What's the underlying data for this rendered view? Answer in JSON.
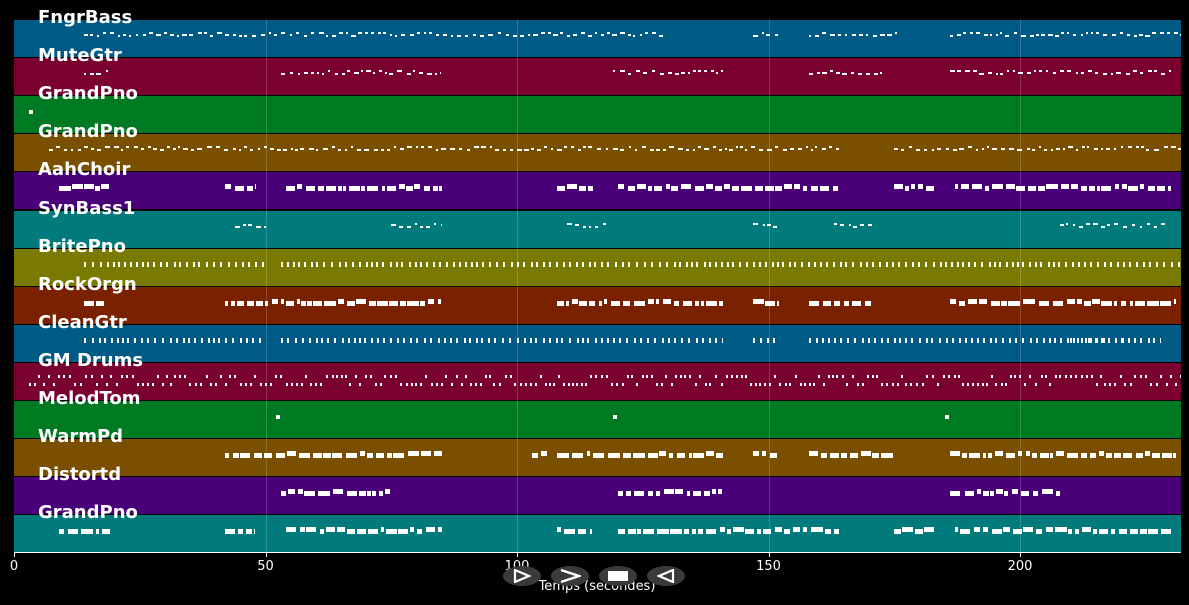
{
  "player": {
    "x_axis_label": "Temps (secondes)",
    "x_ticks": [
      0,
      50,
      100,
      150,
      200
    ],
    "x_range": [
      0,
      232
    ],
    "controls": [
      {
        "name": "play-once-button",
        "icon": "play-outline-icon"
      },
      {
        "name": "forward-button",
        "icon": "chevron-right-icon"
      },
      {
        "name": "stop-button",
        "icon": "stop-icon"
      },
      {
        "name": "reverse-button",
        "icon": "play-reverse-icon"
      }
    ]
  },
  "tracks": [
    {
      "label": "FngrBass",
      "color": "#005a86",
      "density": 0.9,
      "style": "line",
      "segments": [
        [
          14,
          129
        ],
        [
          147,
          152
        ],
        [
          158,
          176
        ],
        [
          186,
          232
        ]
      ]
    },
    {
      "label": "MuteGtr",
      "color": "#7a0030",
      "density": 0.6,
      "style": "line",
      "segments": [
        [
          14,
          19
        ],
        [
          53,
          85
        ],
        [
          119,
          141
        ],
        [
          158,
          173
        ],
        [
          186,
          230
        ]
      ]
    },
    {
      "label": "GrandPno",
      "color": "#007a22",
      "density": 0.0,
      "style": "dot",
      "segments": [
        [
          3,
          3.5
        ]
      ]
    },
    {
      "label": "GrandPno",
      "color": "#7a5000",
      "density": 0.9,
      "style": "line",
      "segments": [
        [
          7,
          164
        ],
        [
          175,
          232
        ]
      ]
    },
    {
      "label": "AahChoir",
      "color": "#4a0078",
      "density": 0.5,
      "style": "block",
      "segments": [
        [
          9,
          19
        ],
        [
          42,
          48
        ],
        [
          54,
          85
        ],
        [
          108,
          115
        ],
        [
          120,
          164
        ],
        [
          175,
          183
        ],
        [
          187,
          230
        ]
      ]
    },
    {
      "label": "SynBass1",
      "color": "#007a7a",
      "density": 0.4,
      "style": "line",
      "segments": [
        [
          44,
          51
        ],
        [
          75,
          85
        ],
        [
          110,
          118
        ],
        [
          147,
          152
        ],
        [
          163,
          171
        ],
        [
          208,
          229
        ]
      ]
    },
    {
      "label": "BritePno",
      "color": "#7a7a00",
      "density": 0.9,
      "style": "tick",
      "segments": [
        [
          14,
          50
        ],
        [
          53,
          232
        ]
      ]
    },
    {
      "label": "RockOrgn",
      "color": "#7a2200",
      "density": 0.7,
      "style": "block",
      "segments": [
        [
          14,
          18
        ],
        [
          42,
          85
        ],
        [
          108,
          141
        ],
        [
          147,
          152
        ],
        [
          158,
          171
        ],
        [
          186,
          231
        ]
      ]
    },
    {
      "label": "CleanGtr",
      "color": "#005a86",
      "density": 0.8,
      "style": "tick",
      "segments": [
        [
          14,
          50
        ],
        [
          53,
          141
        ],
        [
          147,
          152
        ],
        [
          158,
          222
        ],
        [
          210,
          228
        ]
      ]
    },
    {
      "label": "GM Drums",
      "color": "#7a0030",
      "density": 1.0,
      "style": "drums",
      "segments": [
        [
          3,
          232
        ]
      ]
    },
    {
      "label": "MelodTom",
      "color": "#007a22",
      "density": 0.0,
      "style": "dot",
      "segments": [
        [
          52,
          52.5
        ],
        [
          119,
          120
        ],
        [
          185,
          186
        ]
      ]
    },
    {
      "label": "WarmPd",
      "color": "#7a5000",
      "density": 1.0,
      "style": "block",
      "segments": [
        [
          42,
          85
        ],
        [
          103,
          106
        ],
        [
          108,
          141
        ],
        [
          147,
          152
        ],
        [
          158,
          175
        ],
        [
          186,
          231
        ]
      ]
    },
    {
      "label": "Distortd",
      "color": "#4a0078",
      "density": 0.5,
      "style": "block",
      "segments": [
        [
          53,
          75
        ],
        [
          120,
          141
        ],
        [
          186,
          208
        ]
      ]
    },
    {
      "label": "GrandPno",
      "color": "#007a7a",
      "density": 0.5,
      "style": "block",
      "segments": [
        [
          9,
          19
        ],
        [
          42,
          48
        ],
        [
          54,
          85
        ],
        [
          108,
          115
        ],
        [
          120,
          164
        ],
        [
          175,
          183
        ],
        [
          187,
          230
        ]
      ]
    }
  ]
}
